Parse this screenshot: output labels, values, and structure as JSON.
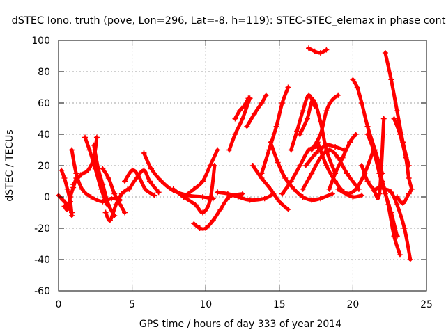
{
  "chart_data": {
    "type": "scatter",
    "title": "dSTEC Iono. truth (pove, Lon=296, Lat=-8, h=119): STEC-STEC_elemax in phase cont",
    "xlabel": "GPS time / hours of day 333 of year 2014",
    "ylabel": "dSTEC  / TECUs",
    "xlim": [
      0,
      25
    ],
    "ylim": [
      -60,
      100
    ],
    "xticks": [
      "0",
      "5",
      "10",
      "15",
      "20",
      "25"
    ],
    "yticks": [
      "-60",
      "-40",
      "-20",
      "0",
      "20",
      "40",
      "60",
      "80",
      "100"
    ],
    "grid": true,
    "marker": "+",
    "color": "#ff0000",
    "series": [
      {
        "x": [
          0.0,
          0.3,
          0.6,
          0.9
        ],
        "y": [
          1,
          -2,
          -5,
          -10
        ]
      },
      {
        "x": [
          0.2,
          0.4,
          0.6,
          0.8,
          0.9
        ],
        "y": [
          17,
          12,
          5,
          -3,
          -12
        ]
      },
      {
        "x": [
          0.4,
          0.6,
          0.8,
          1.0,
          1.2
        ],
        "y": [
          -6,
          -8,
          0,
          6,
          12
        ]
      },
      {
        "x": [
          0.9,
          1.2,
          1.6,
          2.2,
          3.0,
          3.6,
          4.2
        ],
        "y": [
          30,
          15,
          5,
          0,
          -3,
          -1,
          -2
        ]
      },
      {
        "x": [
          1.0,
          1.5,
          2.0,
          2.4,
          2.6
        ],
        "y": [
          8,
          14,
          17,
          25,
          38
        ]
      },
      {
        "x": [
          1.8,
          2.1,
          2.5,
          2.9,
          3.3
        ],
        "y": [
          38,
          30,
          18,
          5,
          -5
        ]
      },
      {
        "x": [
          2.4,
          2.7,
          3.0,
          3.4,
          3.8
        ],
        "y": [
          33,
          18,
          8,
          -5,
          -12
        ]
      },
      {
        "x": [
          3.0,
          3.4,
          3.8,
          4.2,
          4.5
        ],
        "y": [
          18,
          12,
          2,
          -5,
          -10
        ]
      },
      {
        "x": [
          3.2,
          3.5,
          3.9,
          4.3,
          4.7
        ],
        "y": [
          -10,
          -15,
          -5,
          2,
          5
        ]
      },
      {
        "x": [
          4.5,
          5.0,
          5.4,
          5.9,
          6.5
        ],
        "y": [
          10,
          17,
          14,
          5,
          1
        ]
      },
      {
        "x": [
          4.8,
          5.3,
          5.8,
          6.2,
          6.8
        ],
        "y": [
          5,
          12,
          17,
          10,
          3
        ]
      },
      {
        "x": [
          5.8,
          6.3,
          7.0,
          7.8,
          8.8,
          9.8,
          10.5
        ],
        "y": [
          28,
          18,
          10,
          4,
          1,
          0,
          -1
        ]
      },
      {
        "x": [
          7.8,
          8.5,
          9.3,
          9.8,
          10.3,
          10.6
        ],
        "y": [
          5,
          0,
          -5,
          -10,
          -2,
          20
        ]
      },
      {
        "x": [
          8.5,
          9.2,
          9.8,
          10.3,
          10.8
        ],
        "y": [
          0,
          5,
          10,
          20,
          30
        ]
      },
      {
        "x": [
          9.2,
          9.6,
          10.0,
          10.5,
          11.0,
          11.6,
          12.5
        ],
        "y": [
          -17,
          -20,
          -20,
          -15,
          -8,
          0,
          2
        ]
      },
      {
        "x": [
          10.8,
          11.5,
          12.2,
          13.0,
          14.0,
          14.6
        ],
        "y": [
          3,
          2,
          0,
          -2,
          -1,
          2
        ]
      },
      {
        "x": [
          12.0,
          12.3,
          12.6,
          12.9
        ],
        "y": [
          50,
          55,
          58,
          63
        ]
      },
      {
        "x": [
          11.6,
          12.0,
          12.5,
          13.0
        ],
        "y": [
          30,
          40,
          50,
          63
        ]
      },
      {
        "x": [
          12.8,
          13.3,
          13.8,
          14.1
        ],
        "y": [
          45,
          53,
          60,
          65
        ]
      },
      {
        "x": [
          13.2,
          13.8,
          14.4,
          15.0,
          15.6
        ],
        "y": [
          20,
          12,
          5,
          -3,
          -8
        ]
      },
      {
        "x": [
          13.8,
          14.3,
          14.8,
          15.2,
          15.6
        ],
        "y": [
          15,
          30,
          45,
          60,
          70
        ]
      },
      {
        "x": [
          14.4,
          14.9,
          15.4,
          16.0,
          16.6,
          17.2,
          17.8,
          18.6
        ],
        "y": [
          35,
          22,
          12,
          5,
          0,
          -2,
          -1,
          2
        ]
      },
      {
        "x": [
          15.2,
          15.8,
          16.4,
          17.0,
          17.6
        ],
        "y": [
          2,
          10,
          20,
          30,
          32
        ]
      },
      {
        "x": [
          15.8,
          16.2,
          16.6,
          17.0,
          17.4
        ],
        "y": [
          30,
          42,
          55,
          65,
          58
        ]
      },
      {
        "x": [
          16.4,
          16.9,
          17.3,
          17.8,
          18.2,
          18.8
        ],
        "y": [
          40,
          50,
          62,
          48,
          30,
          15
        ]
      },
      {
        "x": [
          16.6,
          17.2,
          17.8,
          18.4,
          19.0,
          19.6,
          20.4
        ],
        "y": [
          5,
          15,
          25,
          30,
          25,
          15,
          5
        ]
      },
      {
        "x": [
          16.8,
          17.5,
          18.2,
          18.8,
          19.4
        ],
        "y": [
          20,
          28,
          33,
          32,
          30
        ]
      },
      {
        "x": [
          17.0,
          17.4,
          17.8,
          18.2
        ],
        "y": [
          95,
          93,
          92,
          94
        ]
      },
      {
        "x": [
          17.2,
          17.8,
          18.2,
          18.6,
          19.0
        ],
        "y": [
          30,
          40,
          55,
          62,
          65
        ]
      },
      {
        "x": [
          17.6,
          18.2,
          18.8,
          19.4,
          20.0,
          20.6
        ],
        "y": [
          35,
          20,
          10,
          3,
          0,
          1
        ]
      },
      {
        "x": [
          18.4,
          18.8,
          19.3,
          19.8,
          20.2
        ],
        "y": [
          5,
          15,
          25,
          35,
          40
        ]
      },
      {
        "x": [
          19.0,
          19.6,
          20.2,
          20.8,
          21.4
        ],
        "y": [
          5,
          2,
          5,
          15,
          30
        ]
      },
      {
        "x": [
          20.0,
          20.3,
          20.6,
          21.0,
          21.5,
          22.0
        ],
        "y": [
          75,
          70,
          60,
          45,
          30,
          15
        ]
      },
      {
        "x": [
          20.6,
          21.0,
          21.4,
          21.8,
          22.1
        ],
        "y": [
          20,
          10,
          5,
          2,
          50
        ]
      },
      {
        "x": [
          21.0,
          21.4,
          21.8,
          22.2,
          22.6,
          23.0
        ],
        "y": [
          40,
          30,
          15,
          2,
          -10,
          -25
        ]
      },
      {
        "x": [
          21.4,
          21.8,
          22.2,
          22.6,
          23.0,
          23.5,
          23.9
        ],
        "y": [
          4,
          6,
          5,
          3,
          -5,
          -20,
          -40
        ]
      },
      {
        "x": [
          21.6,
          22.0,
          22.4,
          22.8,
          23.2
        ],
        "y": [
          25,
          10,
          -5,
          -25,
          -37
        ]
      },
      {
        "x": [
          22.2,
          22.6,
          23.0,
          23.4,
          23.8
        ],
        "y": [
          92,
          75,
          55,
          35,
          20
        ]
      },
      {
        "x": [
          22.8,
          23.2,
          23.6,
          23.8,
          24.0
        ],
        "y": [
          50,
          40,
          25,
          12,
          5
        ]
      },
      {
        "x": [
          23.0,
          23.4,
          23.8,
          24.0
        ],
        "y": [
          0,
          -4,
          2,
          5
        ]
      }
    ]
  }
}
